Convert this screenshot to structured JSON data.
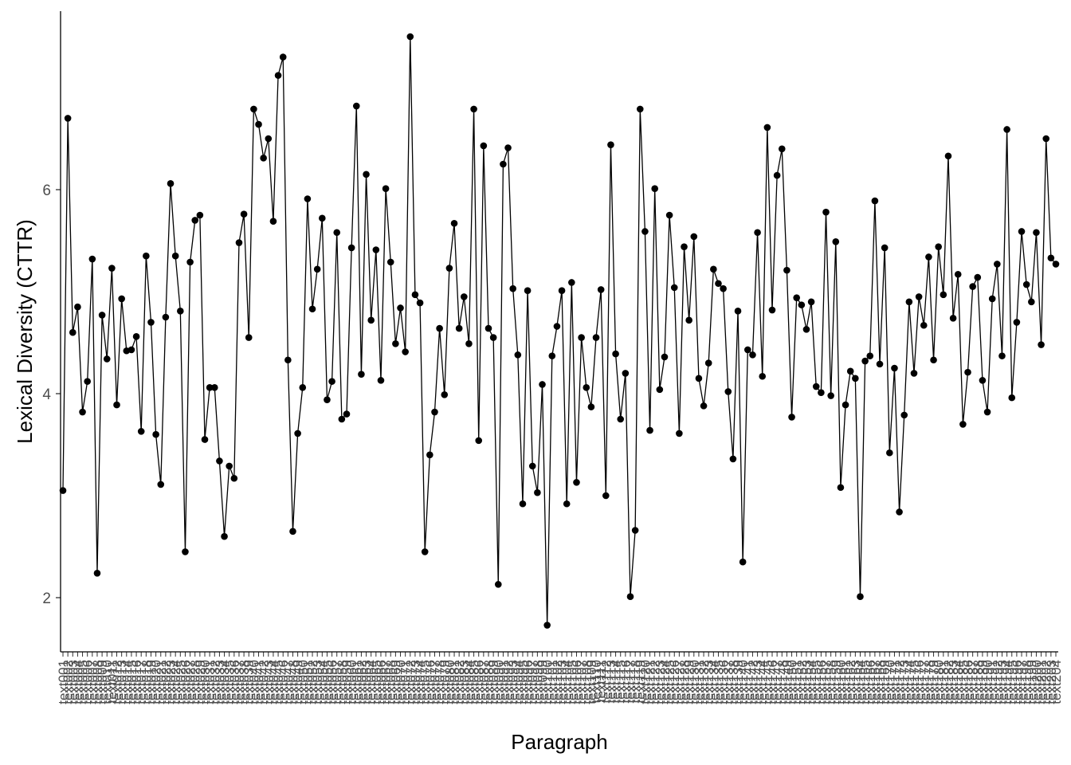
{
  "chart_data": {
    "type": "line",
    "title": "",
    "xlabel": "Paragraph",
    "ylabel": "Lexical Diversity (CTTR)",
    "ylim": [
      1.5,
      7.6
    ],
    "yticks": [
      2,
      4,
      6
    ],
    "grid": false,
    "legend": "none",
    "line_color": "#000000",
    "point_color": "#000000",
    "x_tick_labels": [
      "text001",
      "text002",
      "text003",
      "text004",
      "text005",
      "text006",
      "text007",
      "text008",
      "text009",
      "text010",
      "text011",
      "text012",
      "text013",
      "text014",
      "text015",
      "text016",
      "text017",
      "text018",
      "text019",
      "text020",
      "text021",
      "text022",
      "text023",
      "text024",
      "text025",
      "text026",
      "text027",
      "text028",
      "text029",
      "text030",
      "text031",
      "text032",
      "text033",
      "text034",
      "text035",
      "text036",
      "text037",
      "text038",
      "text039",
      "text040",
      "text041",
      "text042",
      "text043",
      "text044",
      "text045",
      "text046",
      "text047",
      "text048",
      "text049",
      "text050",
      "text051",
      "text052",
      "text053",
      "text054",
      "text055",
      "text056",
      "text057",
      "text058",
      "text059",
      "text060",
      "text061",
      "text062",
      "text063",
      "text064",
      "text065",
      "text066",
      "text067",
      "text068",
      "text069",
      "text070",
      "text071",
      "text072",
      "text073",
      "text074",
      "text075",
      "text076",
      "text077",
      "text078",
      "text079",
      "text080",
      "text081",
      "text082",
      "text083",
      "text084",
      "text085",
      "text086",
      "text087",
      "text088",
      "text089",
      "text090",
      "text091",
      "text092",
      "text093",
      "text094",
      "text095",
      "text096",
      "text097",
      "text098",
      "text099",
      "text100",
      "text101",
      "text102",
      "text103",
      "text104",
      "text105",
      "text106",
      "text107",
      "text108",
      "text109",
      "text110",
      "text111",
      "text112",
      "text113",
      "text114",
      "text115",
      "text116",
      "text117",
      "text118",
      "text119",
      "text120",
      "text121",
      "text122",
      "text123",
      "text124",
      "text125",
      "text126",
      "text127",
      "text128",
      "text129",
      "text130",
      "text131",
      "text132",
      "text133",
      "text134",
      "text135",
      "text136",
      "text137",
      "text138",
      "text139",
      "text140",
      "text141",
      "text142",
      "text143",
      "text144",
      "text145",
      "text146",
      "text147",
      "text148",
      "text149",
      "text150",
      "text151",
      "text152",
      "text153",
      "text154",
      "text155",
      "text156",
      "text157",
      "text158",
      "text159",
      "text160",
      "text161",
      "text162",
      "text163",
      "text164",
      "text165",
      "text166",
      "text167",
      "text168",
      "text169",
      "text170",
      "text171",
      "text172",
      "text173",
      "text174",
      "text175",
      "text176",
      "text177",
      "text178",
      "text179",
      "text180",
      "text181",
      "text182",
      "text183",
      "text184",
      "text185",
      "text186",
      "text187",
      "text188",
      "text189",
      "text190",
      "text191",
      "text192",
      "text193",
      "text194",
      "text195",
      "text196",
      "text197",
      "text198",
      "text199",
      "text200",
      "text201",
      "text202",
      "text203",
      "text204"
    ],
    "y": [
      3.05,
      6.7,
      4.6,
      4.85,
      3.82,
      4.12,
      5.32,
      2.24,
      4.77,
      4.34,
      5.23,
      3.89,
      4.93,
      4.42,
      4.43,
      4.56,
      3.63,
      5.35,
      4.7,
      3.6,
      3.11,
      4.75,
      6.06,
      5.35,
      4.81,
      2.45,
      5.29,
      5.7,
      5.75,
      3.55,
      4.06,
      4.06,
      3.34,
      2.6,
      3.29,
      3.17,
      5.48,
      5.76,
      4.55,
      6.79,
      6.64,
      6.31,
      6.5,
      5.69,
      7.12,
      7.3,
      4.33,
      2.65,
      3.61,
      4.06,
      5.91,
      4.83,
      5.22,
      5.72,
      3.94,
      4.12,
      5.58,
      3.75,
      3.8,
      5.43,
      6.82,
      4.19,
      6.15,
      4.72,
      5.41,
      4.13,
      6.01,
      5.29,
      4.49,
      4.84,
      4.41,
      7.5,
      4.97,
      4.89,
      2.45,
      3.4,
      3.82,
      4.64,
      3.99,
      5.23,
      5.67,
      4.64,
      4.95,
      4.49,
      6.79,
      3.54,
      6.43,
      4.64,
      4.55,
      2.13,
      6.25,
      6.41,
      5.03,
      4.38,
      2.92,
      5.01,
      3.29,
      3.03,
      4.09,
      1.73,
      4.37,
      4.66,
      5.01,
      2.92,
      5.09,
      3.13,
      4.55,
      4.06,
      3.87,
      4.55,
      5.02,
      3.0,
      6.44,
      4.39,
      3.75,
      4.2,
      2.01,
      2.66,
      6.79,
      5.59,
      3.64,
      6.01,
      4.04,
      4.36,
      5.75,
      5.04,
      3.61,
      5.44,
      4.72,
      5.54,
      4.15,
      3.88,
      4.3,
      5.22,
      5.08,
      5.03,
      4.02,
      3.36,
      4.81,
      2.35,
      4.43,
      4.38,
      5.58,
      4.17,
      6.61,
      4.82,
      6.14,
      6.4,
      5.21,
      3.77,
      4.94,
      4.87,
      4.63,
      4.9,
      4.07,
      4.01,
      5.78,
      3.98,
      5.49,
      3.08,
      3.89,
      4.22,
      4.15,
      2.01,
      4.32,
      4.37,
      5.89,
      4.29,
      5.43,
      3.42,
      4.25,
      2.84,
      3.79,
      4.9,
      4.2,
      4.95,
      4.67,
      5.34,
      4.33,
      5.44,
      4.97,
      6.33,
      4.74,
      5.17,
      3.7,
      4.21,
      5.05,
      5.14,
      4.13,
      3.82,
      4.93,
      5.27,
      4.37,
      6.59,
      3.96,
      4.7,
      5.59,
      5.07,
      4.9,
      5.58,
      4.48,
      6.5,
      5.33,
      5.27
    ]
  }
}
